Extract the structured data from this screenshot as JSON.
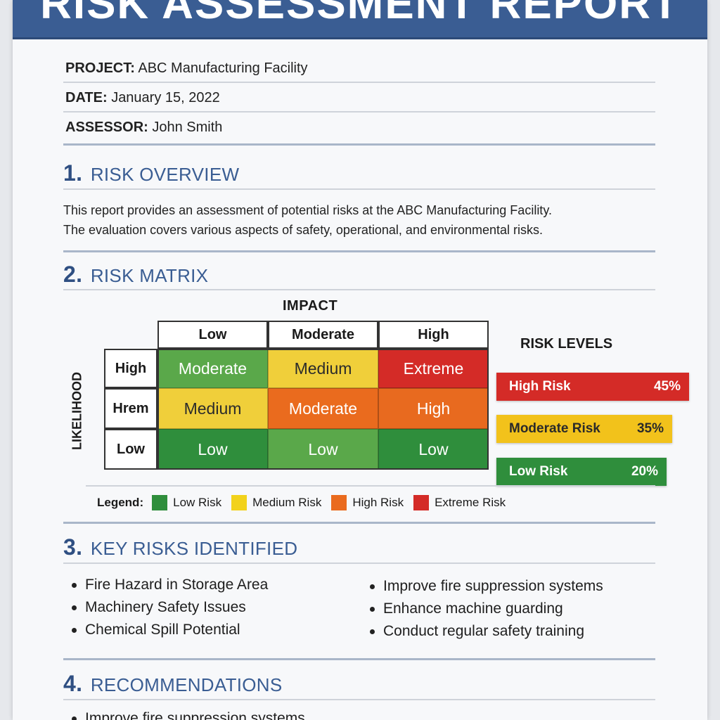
{
  "title": "RISK ASSESSMENT REPORT",
  "meta": {
    "project_label": "PROJECT:",
    "project_value": "ABC Manufacturing Facility",
    "date_label": "DATE:",
    "date_value": "January 15, 2022",
    "assessor_label": "ASSESSOR:",
    "assessor_value": "John Smith"
  },
  "sections": {
    "overview": {
      "num": "1.",
      "title": "RISK OVERVIEW",
      "line1": "This report provides an assessment of potential risks at the ABC Manufacturing Facility.",
      "line2": "The evaluation covers various aspects of safety, operational, and environmental risks."
    },
    "matrix": {
      "num": "2.",
      "title": "RISK MATRIX"
    },
    "key_risks": {
      "num": "3.",
      "title": "KEY RISKS IDENTIFIED"
    },
    "recommendations": {
      "num": "4.",
      "title": "RECOMMENDATIONS"
    }
  },
  "matrix": {
    "impact_label": "IMPACT",
    "likelihood_label": "LIKELIHOOD",
    "col_headers": [
      "Low",
      "Moderate",
      "High"
    ],
    "row_headers": [
      "High",
      "Hrem",
      "Low"
    ],
    "cells": [
      [
        "Moderate",
        "Medium",
        "Extreme"
      ],
      [
        "Medium",
        "Moderate",
        "High"
      ],
      [
        "Low",
        "Low",
        "Low"
      ]
    ],
    "cell_colors": [
      [
        "#5aa84a",
        "#f0cf3a",
        "#d42b27"
      ],
      [
        "#f0cf3a",
        "#ea6b1e",
        "#e86a1f"
      ],
      [
        "#2f8e3c",
        "#5aa84a",
        "#2f8e3c"
      ]
    ]
  },
  "risk_levels": {
    "title": "RISK LEVELS",
    "items": [
      {
        "label": "High Risk",
        "percent": "45%",
        "color": "#d42b27"
      },
      {
        "label": "Moderate Risk",
        "percent": "35%",
        "color": "#f2c21b"
      },
      {
        "label": "Low Risk",
        "percent": "20%",
        "color": "#2f8e3c"
      }
    ]
  },
  "legend": {
    "title": "Legend:",
    "items": [
      {
        "label": "Low Risk",
        "color": "#2f8e3c"
      },
      {
        "label": "Medium Risk",
        "color": "#f2d21b"
      },
      {
        "label": "High Risk",
        "color": "#ea6b1e"
      },
      {
        "label": "Extreme Risk",
        "color": "#d42b27"
      }
    ]
  },
  "key_risks": {
    "left": [
      "Fire Hazard in Storage Area",
      "Machinery Safety Issues",
      "Chemical Spill Potential"
    ],
    "right": [
      "Improve fire suppression systems",
      "Enhance machine guarding",
      "Conduct regular safety training"
    ]
  },
  "recommendations": [
    "Improve fire suppression systems"
  ]
}
